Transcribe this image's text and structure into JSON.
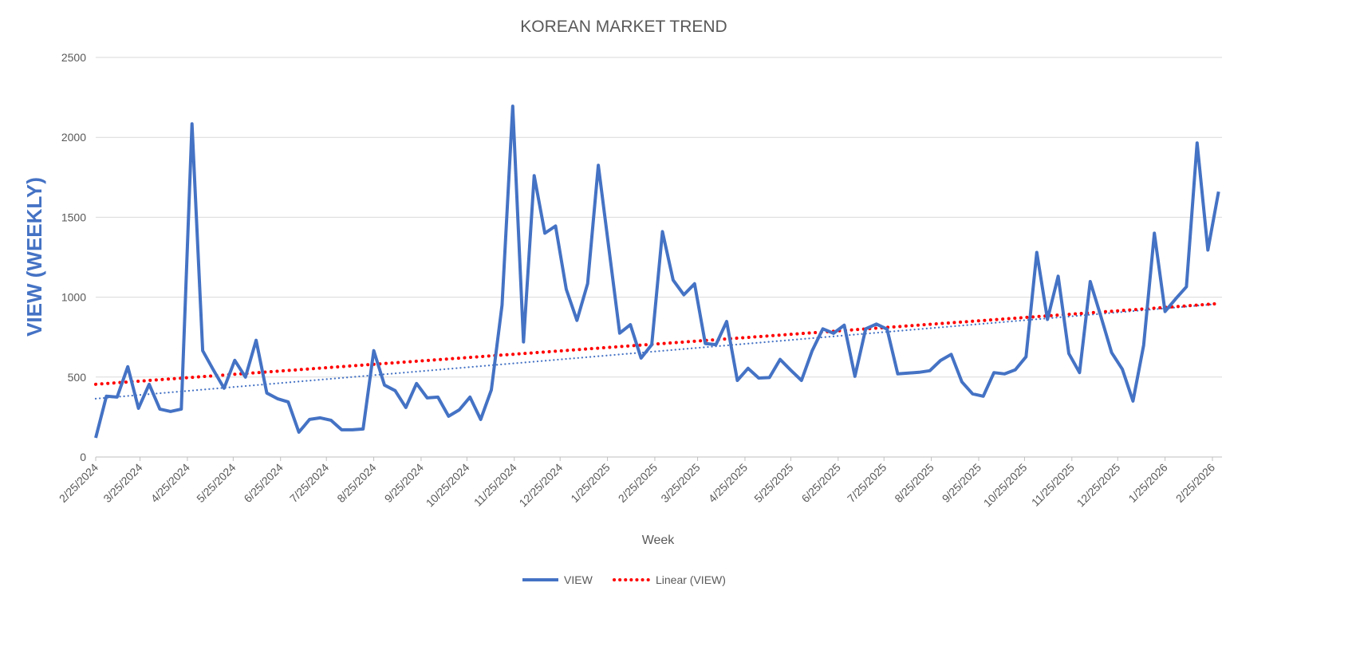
{
  "chart_data": {
    "type": "line",
    "title": "KOREAN MARKET TREND",
    "xlabel": "Week",
    "ylabel": "VIEW (WEEKLY)",
    "ylim": [
      0,
      2500
    ],
    "yticks": [
      0,
      500,
      1000,
      1500,
      2000,
      2500
    ],
    "grid": true,
    "legend_placement": "bottom",
    "start_date": "2/25/2024",
    "interval_days": 7,
    "xtick_labels": [
      "2/25/2024",
      "3/25/2024",
      "4/25/2024",
      "5/25/2024",
      "6/25/2024",
      "7/25/2024",
      "8/25/2024",
      "9/25/2024",
      "10/25/2024",
      "11/25/2024",
      "12/25/2024",
      "1/25/2025",
      "2/25/2025",
      "3/25/2025",
      "4/25/2025",
      "5/25/2025",
      "6/25/2025",
      "7/25/2025",
      "8/25/2025",
      "9/25/2025",
      "10/25/2025",
      "11/25/2025",
      "12/25/2025",
      "1/25/2026",
      "2/25/2026"
    ],
    "series": [
      {
        "name": "VIEW",
        "color": "#4472c4",
        "values": [
          120,
          380,
          375,
          565,
          305,
          455,
          300,
          285,
          300,
          2085,
          665,
          545,
          430,
          605,
          500,
          730,
          400,
          365,
          345,
          155,
          235,
          245,
          230,
          170,
          170,
          175,
          665,
          450,
          415,
          310,
          460,
          370,
          375,
          255,
          295,
          375,
          235,
          420,
          950,
          2195,
          720,
          1760,
          1400,
          1445,
          1050,
          855,
          1085,
          1825,
          1300,
          775,
          828,
          619,
          703,
          1410,
          1107,
          1015,
          1084,
          710,
          703,
          848,
          479,
          555,
          494,
          497,
          611,
          543,
          479,
          665,
          802,
          774,
          825,
          505,
          802,
          832,
          800,
          520,
          525,
          530,
          540,
          604,
          642,
          470,
          395,
          380,
          528,
          520,
          546,
          627,
          1280,
          861,
          1131,
          647,
          528,
          1098,
          879,
          653,
          550,
          350,
          700,
          1400,
          910,
          990,
          1065,
          1965,
          1295,
          1660
        ]
      }
    ],
    "trendlines": [
      {
        "name": "Linear (VIEW)",
        "color": "#ff0000",
        "start": 455,
        "end": 960,
        "in_legend": true
      },
      {
        "name": "Linear trend (blue)",
        "color": "#4472c4",
        "start": 365,
        "end": 958,
        "in_legend": false
      }
    ]
  }
}
